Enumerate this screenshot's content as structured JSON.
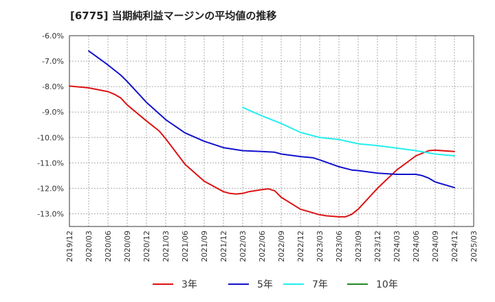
{
  "chart_data": {
    "type": "line",
    "title": "[6775]  当期純利益マージンの平均値の推移",
    "xlabel": "",
    "ylabel": "",
    "ylim": [
      -13.5,
      -6.0
    ],
    "yticks": [
      -6.0,
      -7.0,
      -8.0,
      -9.0,
      -10.0,
      -11.0,
      -12.0,
      -13.0
    ],
    "ytick_labels": [
      "-6.0%",
      "-7.0%",
      "-8.0%",
      "-9.0%",
      "-10.0%",
      "-11.0%",
      "-12.0%",
      "-13.0%"
    ],
    "xticks": [
      "2019/12",
      "2020/03",
      "2020/06",
      "2020/09",
      "2020/12",
      "2021/03",
      "2021/06",
      "2021/09",
      "2021/12",
      "2022/03",
      "2022/06",
      "2022/09",
      "2022/12",
      "2023/03",
      "2023/06",
      "2023/09",
      "2023/12",
      "2024/03",
      "2024/06",
      "2024/09",
      "2024/12",
      "2025/03"
    ],
    "grid": true,
    "legend_position": "bottom",
    "series": [
      {
        "name": "3年",
        "color": "#dd1111",
        "points": [
          [
            "2019/12",
            -7.98
          ],
          [
            "2020/03",
            -8.05
          ],
          [
            "2020/06",
            -8.2
          ],
          [
            "2020/07",
            -8.3
          ],
          [
            "2020/08",
            -8.45
          ],
          [
            "2020/09",
            -8.72
          ],
          [
            "2020/12",
            -9.35
          ],
          [
            "2021/02",
            -9.75
          ],
          [
            "2021/03",
            -10.05
          ],
          [
            "2021/06",
            -11.05
          ],
          [
            "2021/09",
            -11.72
          ],
          [
            "2021/12",
            -12.13
          ],
          [
            "2022/01",
            -12.2
          ],
          [
            "2022/02",
            -12.22
          ],
          [
            "2022/03",
            -12.2
          ],
          [
            "2022/04",
            -12.13
          ],
          [
            "2022/06",
            -12.05
          ],
          [
            "2022/07",
            -12.02
          ],
          [
            "2022/08",
            -12.1
          ],
          [
            "2022/09",
            -12.35
          ],
          [
            "2022/12",
            -12.82
          ],
          [
            "2023/03",
            -13.04
          ],
          [
            "2023/04",
            -13.08
          ],
          [
            "2023/06",
            -13.12
          ],
          [
            "2023/07",
            -13.12
          ],
          [
            "2023/08",
            -13.02
          ],
          [
            "2023/09",
            -12.82
          ],
          [
            "2023/12",
            -12.0
          ],
          [
            "2024/03",
            -11.28
          ],
          [
            "2024/06",
            -10.72
          ],
          [
            "2024/08",
            -10.52
          ],
          [
            "2024/09",
            -10.5
          ],
          [
            "2024/12",
            -10.55
          ]
        ]
      },
      {
        "name": "5年",
        "color": "#1111cc",
        "points": [
          [
            "2020/03",
            -6.6
          ],
          [
            "2020/06",
            -7.15
          ],
          [
            "2020/08",
            -7.55
          ],
          [
            "2020/09",
            -7.8
          ],
          [
            "2020/12",
            -8.62
          ],
          [
            "2021/03",
            -9.3
          ],
          [
            "2021/06",
            -9.82
          ],
          [
            "2021/09",
            -10.15
          ],
          [
            "2021/12",
            -10.4
          ],
          [
            "2022/03",
            -10.52
          ],
          [
            "2022/06",
            -10.55
          ],
          [
            "2022/08",
            -10.58
          ],
          [
            "2022/09",
            -10.65
          ],
          [
            "2022/12",
            -10.75
          ],
          [
            "2023/02",
            -10.8
          ],
          [
            "2023/03",
            -10.88
          ],
          [
            "2023/06",
            -11.15
          ],
          [
            "2023/08",
            -11.28
          ],
          [
            "2023/09",
            -11.3
          ],
          [
            "2023/12",
            -11.4
          ],
          [
            "2024/03",
            -11.45
          ],
          [
            "2024/06",
            -11.45
          ],
          [
            "2024/07",
            -11.5
          ],
          [
            "2024/08",
            -11.6
          ],
          [
            "2024/09",
            -11.75
          ],
          [
            "2024/12",
            -11.97
          ]
        ]
      },
      {
        "name": "7年",
        "color": "#22eeee",
        "points": [
          [
            "2022/03",
            -8.82
          ],
          [
            "2022/06",
            -9.15
          ],
          [
            "2022/09",
            -9.45
          ],
          [
            "2022/12",
            -9.8
          ],
          [
            "2023/03",
            -10.0
          ],
          [
            "2023/06",
            -10.08
          ],
          [
            "2023/09",
            -10.25
          ],
          [
            "2023/12",
            -10.32
          ],
          [
            "2024/03",
            -10.42
          ],
          [
            "2024/06",
            -10.52
          ],
          [
            "2024/09",
            -10.65
          ],
          [
            "2024/12",
            -10.72
          ]
        ]
      },
      {
        "name": "10年",
        "color": "#228822",
        "points": []
      }
    ]
  }
}
